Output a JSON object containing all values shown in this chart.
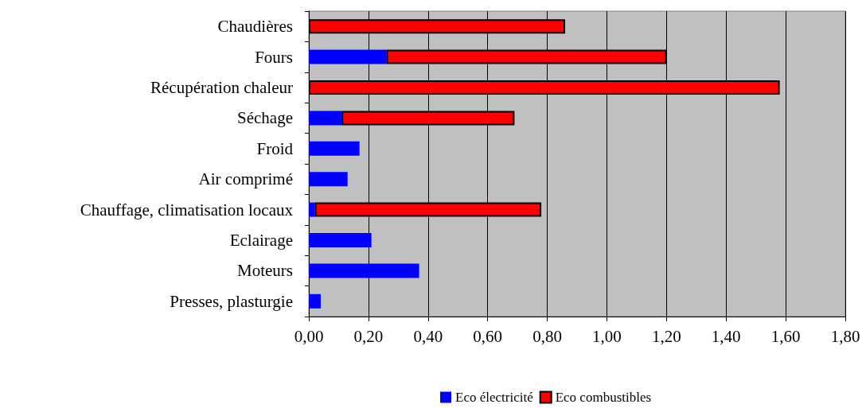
{
  "chart_data": {
    "type": "bar",
    "orientation": "horizontal",
    "stacked": true,
    "categories": [
      "Chaudières",
      "Fours",
      "Récupération chaleur",
      "Séchage",
      "Froid",
      "Air comprimé",
      "Chauffage, climatisation locaux",
      "Eclairage",
      "Moteurs",
      "Presses, plasturgie"
    ],
    "series": [
      {
        "name": "Eco électricité",
        "color": "#0000ff",
        "values": [
          0,
          0.26,
          0,
          0.11,
          0.17,
          0.13,
          0.02,
          0.21,
          0.37,
          0.04
        ]
      },
      {
        "name": "Eco combustibles",
        "color": "#ff0000",
        "values": [
          0.86,
          0.94,
          1.58,
          0.58,
          0,
          0,
          0.76,
          0,
          0,
          0
        ]
      }
    ],
    "xlim": [
      0,
      1.8
    ],
    "xticks": [
      {
        "value": 0,
        "label": "0,00"
      },
      {
        "value": 0.2,
        "label": "0,20"
      },
      {
        "value": 0.4,
        "label": "0,40"
      },
      {
        "value": 0.6,
        "label": "0,60"
      },
      {
        "value": 0.8,
        "label": "0,80"
      },
      {
        "value": 1,
        "label": "1,00"
      },
      {
        "value": 1.2,
        "label": "1,20"
      },
      {
        "value": 1.4,
        "label": "1,40"
      },
      {
        "value": 1.6,
        "label": "1,60"
      },
      {
        "value": 1.8,
        "label": "1,80"
      }
    ],
    "grid": "x",
    "legend": "bottom"
  }
}
